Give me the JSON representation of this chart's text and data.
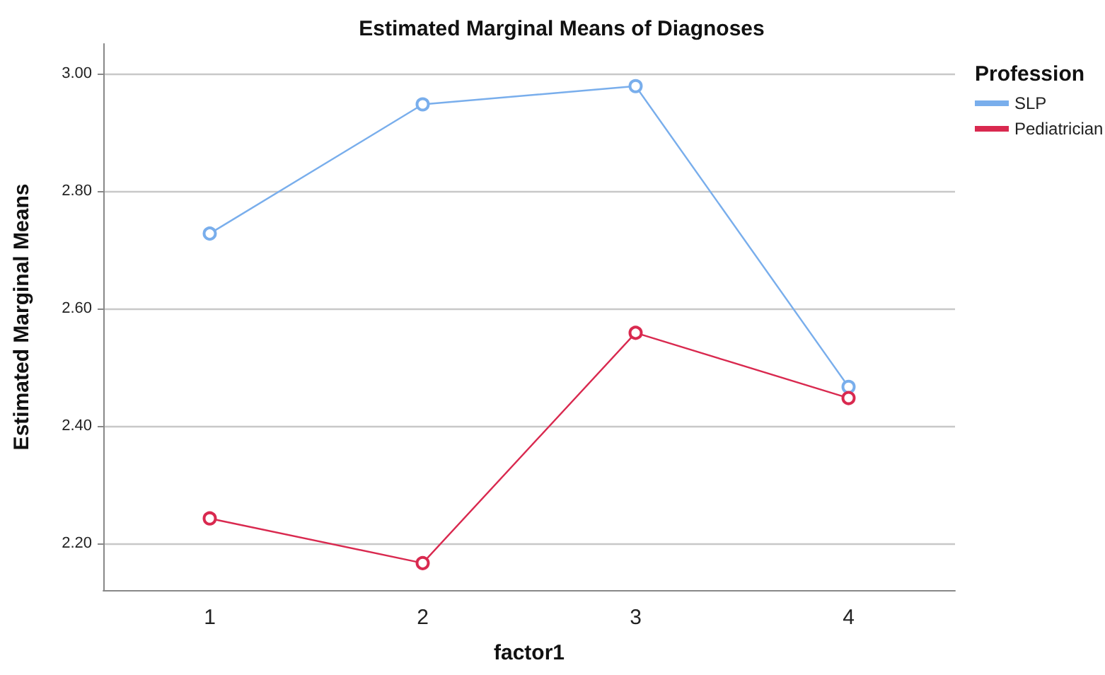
{
  "chart_data": {
    "type": "line",
    "title": "Estimated Marginal Means of Diagnoses",
    "xlabel": "factor1",
    "ylabel": "Estimated Marginal Means",
    "legend_title": "Profession",
    "categories": [
      "1",
      "2",
      "3",
      "4"
    ],
    "series": [
      {
        "name": "SLP",
        "color": "#79aeec",
        "values": [
          2.727,
          2.947,
          2.978,
          2.466
        ]
      },
      {
        "name": "Pediatrician",
        "color": "#d9294f",
        "values": [
          2.242,
          2.166,
          2.558,
          2.447
        ]
      }
    ],
    "ylim": [
      2.12,
      3.05
    ],
    "yticks": [
      {
        "value": 2.2,
        "label": "2.20"
      },
      {
        "value": 2.4,
        "label": "2.40"
      },
      {
        "value": 2.6,
        "label": "2.60"
      },
      {
        "value": 2.8,
        "label": "2.80"
      },
      {
        "value": 3.0,
        "label": "3.00"
      }
    ],
    "grid": "y",
    "legend": "top right",
    "marker": "circle",
    "line_style": "solid"
  }
}
